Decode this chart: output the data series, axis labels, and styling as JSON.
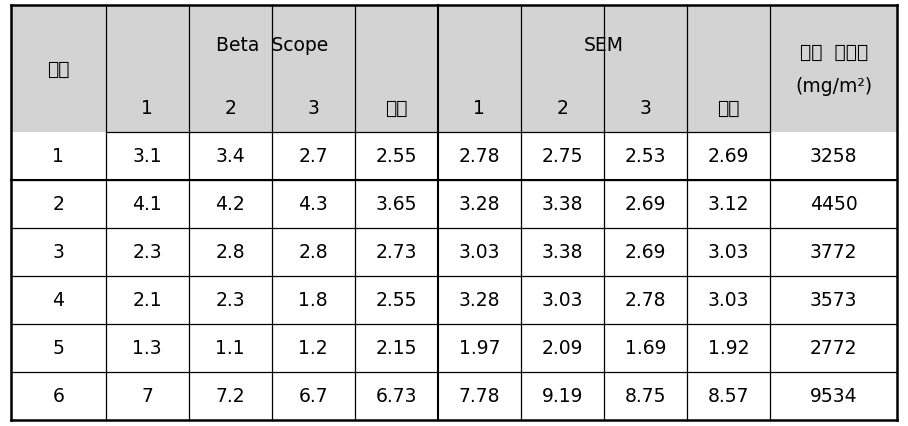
{
  "rows": [
    [
      "1",
      "3.1",
      "3.4",
      "2.7",
      "2.55",
      "2.78",
      "2.75",
      "2.53",
      "2.69",
      "3258"
    ],
    [
      "2",
      "4.1",
      "4.2",
      "4.3",
      "3.65",
      "3.28",
      "3.38",
      "2.69",
      "3.12",
      "4450"
    ],
    [
      "3",
      "2.3",
      "2.8",
      "2.8",
      "2.73",
      "3.03",
      "3.38",
      "2.69",
      "3.03",
      "3772"
    ],
    [
      "4",
      "2.1",
      "2.3",
      "1.8",
      "2.55",
      "3.28",
      "3.03",
      "2.78",
      "3.03",
      "3573"
    ],
    [
      "5",
      "1.3",
      "1.1",
      "1.2",
      "2.15",
      "1.97",
      "2.09",
      "1.69",
      "1.92",
      "2772"
    ],
    [
      "6",
      "7",
      "7.2",
      "6.7",
      "6.73",
      "7.78",
      "9.19",
      "8.75",
      "8.57",
      "9534"
    ]
  ],
  "header_bg": "#d3d3d3",
  "body_bg": "#ffffff",
  "border_color": "#000000",
  "font_size": 13.5,
  "header_font_size": 13.5,
  "beta_scope_label": "Beta  Scope",
  "sem_label": "SEM",
  "beonho_label": "번호",
  "suji_line1": "수지  부착량",
  "suji_line2": "(mg/m²)",
  "pyeonggyun_label": "평균",
  "col_ratios": [
    0.82,
    0.72,
    0.72,
    0.72,
    0.72,
    0.72,
    0.72,
    0.72,
    0.72,
    1.1
  ],
  "row_ratios": [
    1.55,
    0.95,
    0.95,
    0.95,
    0.95,
    0.95,
    0.95,
    0.95
  ],
  "lw_outer": 1.8,
  "lw_inner": 0.9,
  "lw_mid": 1.5
}
